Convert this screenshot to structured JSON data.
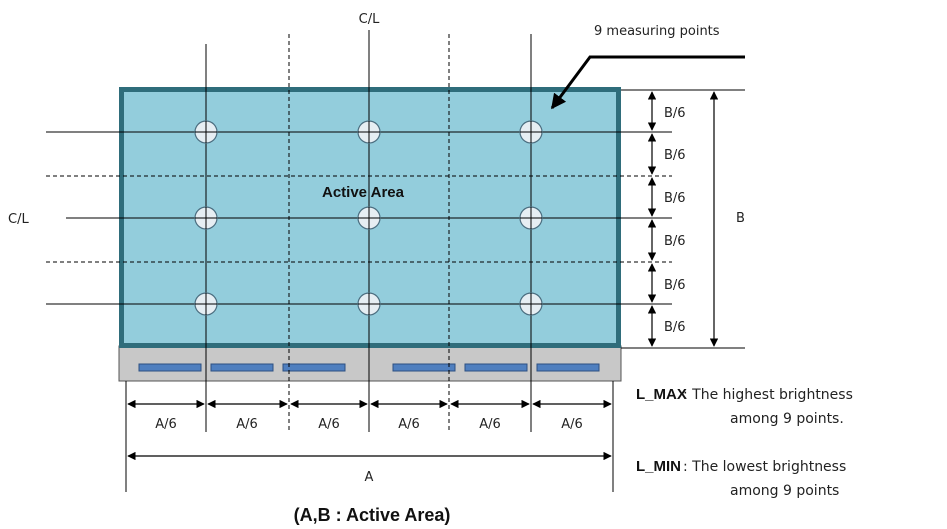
{
  "labels": {
    "centerline": "C/L",
    "measuring_points": "9 measuring points",
    "active_area": "Active Area",
    "b_div": "B/6",
    "b_total": "B",
    "a_div": "A/6",
    "a_total": "A",
    "caption": "(A,B : Active Area)"
  },
  "legend": {
    "max_key": "L_MAX",
    "max_line1": ": The highest brightness",
    "max_line2": "among 9 points.",
    "min_key": "L_MIN",
    "min_line1": ": The lowest brightness",
    "min_line2": "among 9 points"
  },
  "colors": {
    "panel_fill": "#93cddc",
    "panel_border": "#2f6d7b",
    "bezel": "#c8c8c8",
    "driver_chip": "#4f7fbf",
    "point_fill": "#e6eef3"
  },
  "measuring_point_count": 9
}
